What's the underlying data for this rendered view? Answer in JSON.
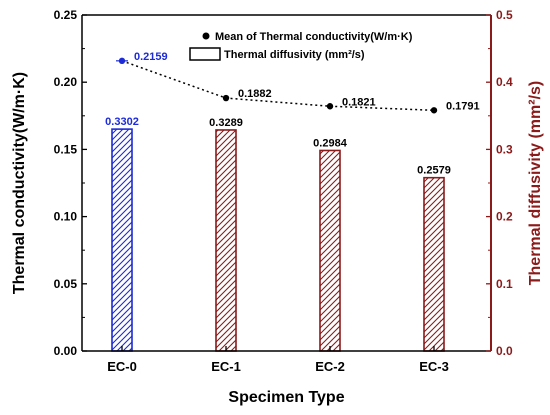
{
  "chart_data": {
    "type": "bar+line",
    "categories": [
      "EC-0",
      "EC-1",
      "EC-2",
      "EC-3"
    ],
    "xlabel": "Specimen Type",
    "ylabel_left": "Thermal conductivity(W/m·K)",
    "ylabel_right": "Thermal diffusivity (mm²/s)",
    "ylim_left": [
      0,
      0.25
    ],
    "ylim_right": [
      0,
      0.5
    ],
    "yticks_left": [
      "0.00",
      "0.05",
      "0.10",
      "0.15",
      "0.20",
      "0.25"
    ],
    "yticks_right": [
      "0.0",
      "0.1",
      "0.2",
      "0.3",
      "0.4",
      "0.5"
    ],
    "grid": false,
    "legend_position": "top-center",
    "series": [
      {
        "name": "Mean of Thermal conductivity(W/m·K)",
        "kind": "line-points",
        "axis": "left",
        "values": [
          0.2159,
          0.1882,
          0.1821,
          0.1791
        ],
        "labels": [
          "0.2159",
          "0.1882",
          "0.1821",
          "0.1791"
        ],
        "point_colors": [
          "#1c2bd6",
          "#000000",
          "#000000",
          "#000000"
        ],
        "label_colors": [
          "#1c2bd6",
          "#000000",
          "#000000",
          "#000000"
        ],
        "line_style": "dotted"
      },
      {
        "name": "Thermal diffusivity (mm²/s)",
        "kind": "bars",
        "axis": "right",
        "values": [
          0.3302,
          0.3289,
          0.2984,
          0.2579
        ],
        "labels": [
          "0.3302",
          "0.3289",
          "0.2984",
          "0.2579"
        ],
        "bar_colors": [
          "#1c2bd6",
          "#8b1a1a",
          "#8b1a1a",
          "#8b1a1a"
        ],
        "label_colors": [
          "#1c2bd6",
          "#000000",
          "#000000",
          "#000000"
        ],
        "fill": "diagonal-hatch"
      }
    ],
    "colors": {
      "right_axis": "#8b1a1a",
      "left_axis": "#000000",
      "highlight": "#1c2bd6"
    }
  }
}
